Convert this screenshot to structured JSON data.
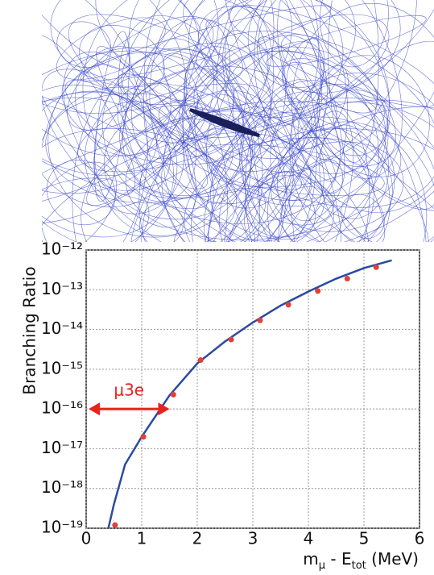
{
  "chart_data": {
    "type": "scatter",
    "ylabel": "Branching Ratio",
    "xlabel_parts": [
      {
        "text": "m"
      },
      {
        "text": "μ",
        "sub": true
      },
      {
        "text": " - E"
      },
      {
        "text": "tot",
        "sub": true
      },
      {
        "text": " (MeV)"
      }
    ],
    "xlim": [
      0,
      6
    ],
    "xticks": [
      0,
      1,
      2,
      3,
      4,
      5,
      6
    ],
    "ylim": [
      1e-19,
      1e-12
    ],
    "log_y": true,
    "grid": true,
    "yticks": [
      {
        "value": 1e-12,
        "label": "10⁻¹²"
      },
      {
        "value": 1e-13,
        "label": "10⁻¹³"
      },
      {
        "value": 1e-14,
        "label": "10⁻¹⁴"
      },
      {
        "value": 1e-15,
        "label": "10⁻¹⁵"
      },
      {
        "value": 1e-16,
        "label": "10⁻¹⁶"
      },
      {
        "value": 1e-17,
        "label": "10⁻¹⁷"
      },
      {
        "value": 1e-18,
        "label": "10⁻¹⁸"
      },
      {
        "value": 1e-19,
        "label": "10⁻¹⁹"
      }
    ],
    "series": [
      {
        "kind": "line",
        "color": "#2b4aa0",
        "x": [
          0.4,
          0.5,
          0.7,
          1.0,
          1.5,
          2.0,
          2.5,
          3.0,
          3.5,
          4.0,
          4.5,
          5.0,
          5.5
        ],
        "values": [
          1e-19,
          4e-19,
          4e-18,
          2e-17,
          2.2e-16,
          1.4e-15,
          5e-15,
          1.5e-14,
          4e-14,
          9e-14,
          1.9e-13,
          3.5e-13,
          5.5e-13
        ]
      },
      {
        "kind": "points",
        "color": "#e0403a",
        "x": [
          0.52,
          1.03,
          1.57,
          2.06,
          2.61,
          3.13,
          3.64,
          4.17,
          4.7,
          5.22
        ],
        "values": [
          1.2e-19,
          2e-17,
          2.3e-16,
          1.7e-15,
          5.6e-15,
          1.7e-14,
          4.2e-14,
          9.3e-14,
          1.9e-13,
          3.7e-13
        ]
      }
    ],
    "annotation": {
      "text": "μ3e",
      "x_start": 0,
      "x_end": 1.5,
      "y": 1e-16,
      "color": "#e8221c"
    }
  }
}
